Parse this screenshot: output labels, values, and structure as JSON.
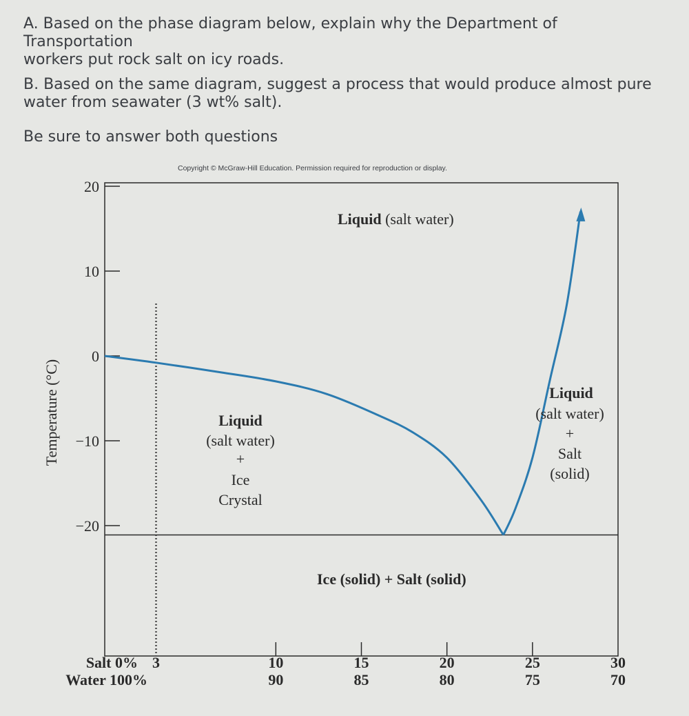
{
  "questions": {
    "a_line1": "A. Based on the phase diagram below, explain why the Department of Transportation",
    "a_line2": "workers put rock salt on icy roads.",
    "b_line1": "B. Based on the same diagram, suggest a process that would produce almost pure",
    "b_line2": "water from seawater (3 wt% salt).",
    "reminder": "Be sure to answer both questions"
  },
  "colors": {
    "curve": "#2b7bb0",
    "axis": "#2a2a2a",
    "background": "#e6e7e4"
  },
  "chart_data": {
    "type": "line",
    "title": "",
    "copyright": "Copyright © McGraw-Hill Education. Permission required for reproduction or display.",
    "ylabel": "Temperature (°C)",
    "ylim": [
      -22,
      20
    ],
    "xlim": [
      0,
      30
    ],
    "y_ticks": [
      {
        "value": 20,
        "label": "20"
      },
      {
        "value": 10,
        "label": "10"
      },
      {
        "value": 0,
        "label": "0"
      },
      {
        "value": -10,
        "label": "−10"
      },
      {
        "value": -20,
        "label": "−20"
      }
    ],
    "x_ticks": [
      {
        "salt": 0,
        "salt_label": "Salt  0%",
        "water_label": "Water  100%"
      },
      {
        "salt": 3,
        "salt_label": "3",
        "water_label": ""
      },
      {
        "salt": 10,
        "salt_label": "10",
        "water_label": "90"
      },
      {
        "salt": 15,
        "salt_label": "15",
        "water_label": "85"
      },
      {
        "salt": 20,
        "salt_label": "20",
        "water_label": "80"
      },
      {
        "salt": 25,
        "salt_label": "25",
        "water_label": "75"
      },
      {
        "salt": 30,
        "salt_label": "30",
        "water_label": "70"
      }
    ],
    "series": [
      {
        "x": [
          0,
          3,
          7,
          10,
          13,
          16,
          18,
          20,
          22,
          23.3
        ],
        "y": [
          0,
          -0.8,
          -2,
          -3,
          -4.5,
          -7,
          -9,
          -12,
          -17,
          -21.1
        ]
      },
      {
        "x": [
          23.3,
          24,
          25,
          26,
          27,
          27.8
        ],
        "y": [
          -21.1,
          -18,
          -12,
          -3,
          6,
          17
        ]
      }
    ],
    "eutectic_temperature": -21.1,
    "seawater_line": {
      "salt": 3
    },
    "regions": [
      {
        "id": "liquid-top",
        "bold": "Liquid",
        "normal": " (salt water)"
      },
      {
        "id": "liquid-ice",
        "lines": [
          "Liquid",
          "(salt water)",
          "+",
          "Ice",
          "Crystal"
        ]
      },
      {
        "id": "liquid-salt",
        "lines": [
          "Liquid",
          "(salt water)",
          "+",
          "Salt",
          "(solid)"
        ]
      },
      {
        "id": "solid",
        "text": "Ice (solid) + Salt (solid)"
      }
    ]
  }
}
